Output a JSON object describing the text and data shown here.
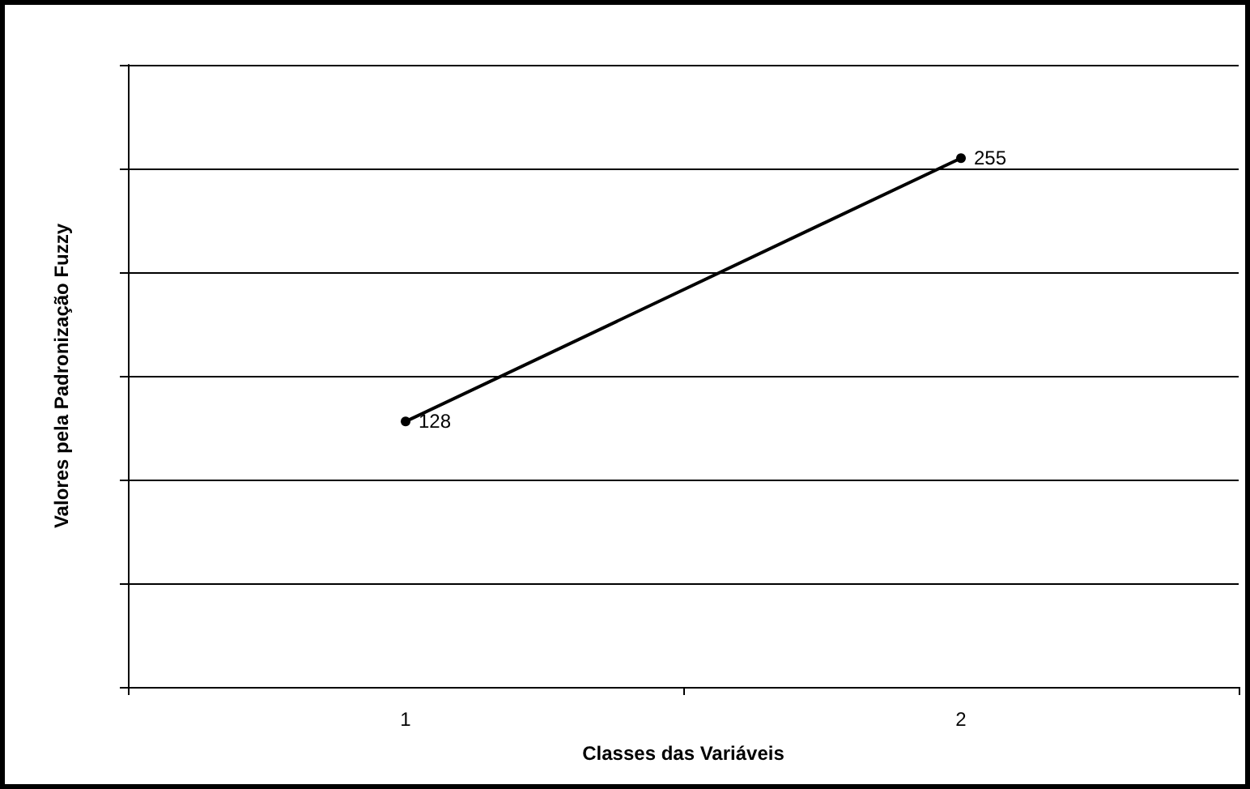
{
  "chart_data": {
    "type": "line",
    "xlabel": "Classes das Variáveis",
    "ylabel": "Valores pela Padronização Fuzzy",
    "categories": [
      "1",
      "2"
    ],
    "series": [
      {
        "color": "#000000",
        "values": [
          128,
          255
        ]
      }
    ],
    "ylim": [
      0,
      300
    ],
    "yticks": [
      {
        "value": 0,
        "label": null
      },
      {
        "value": 50,
        "label": null
      },
      {
        "value": 100,
        "label": null
      },
      {
        "value": 150,
        "label": null
      },
      {
        "value": 200,
        "label": null
      },
      {
        "value": 250,
        "label": null
      },
      {
        "value": 300,
        "label": null
      }
    ],
    "tick_labels": "x",
    "grid": "y",
    "data_labels": true,
    "marker": "circle",
    "line_style": "solid"
  }
}
